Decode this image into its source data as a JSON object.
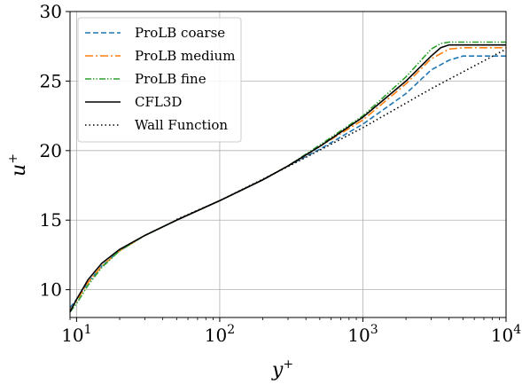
{
  "chart_data": {
    "type": "line",
    "xlabel": "y",
    "xlabel_sup": "+",
    "ylabel": "u",
    "ylabel_sup": "+",
    "xscale": "log",
    "xlim": [
      9,
      10000
    ],
    "ylim": [
      8,
      30
    ],
    "grid": true,
    "legend_position": "top-left",
    "xticks": [
      {
        "value": 10,
        "base": "10",
        "exp": "1"
      },
      {
        "value": 100,
        "base": "10",
        "exp": "2"
      },
      {
        "value": 1000,
        "base": "10",
        "exp": "3"
      },
      {
        "value": 10000,
        "base": "10",
        "exp": "4"
      }
    ],
    "yticks": [
      {
        "value": 10,
        "label": "10"
      },
      {
        "value": 15,
        "label": "15"
      },
      {
        "value": 20,
        "label": "20"
      },
      {
        "value": 25,
        "label": "25"
      },
      {
        "value": 30,
        "label": "30"
      }
    ],
    "series": [
      {
        "name": "ProLB coarse",
        "color": "#1f77b4",
        "dash": "dashed",
        "points": [
          [
            9,
            8.7
          ],
          [
            10,
            9.3
          ],
          [
            12,
            10.5
          ],
          [
            15,
            11.7
          ],
          [
            20,
            12.8
          ],
          [
            30,
            13.9
          ],
          [
            50,
            15.0
          ],
          [
            100,
            16.4
          ],
          [
            200,
            17.9
          ],
          [
            300,
            18.9
          ],
          [
            500,
            20.1
          ],
          [
            1000,
            21.9
          ],
          [
            2000,
            24.1
          ],
          [
            3000,
            25.8
          ],
          [
            4000,
            26.5
          ],
          [
            5000,
            26.8
          ],
          [
            10000,
            26.8
          ]
        ]
      },
      {
        "name": "ProLB medium",
        "color": "#ff7f0e",
        "dash": "dashdot",
        "points": [
          [
            9,
            8.5
          ],
          [
            10,
            9.2
          ],
          [
            12,
            10.5
          ],
          [
            15,
            11.7
          ],
          [
            20,
            12.8
          ],
          [
            30,
            13.9
          ],
          [
            50,
            15.0
          ],
          [
            100,
            16.4
          ],
          [
            200,
            17.9
          ],
          [
            300,
            18.9
          ],
          [
            500,
            20.3
          ],
          [
            1000,
            22.2
          ],
          [
            2000,
            24.8
          ],
          [
            3000,
            26.6
          ],
          [
            4000,
            27.3
          ],
          [
            5000,
            27.4
          ],
          [
            10000,
            27.4
          ]
        ]
      },
      {
        "name": "ProLB fine",
        "color": "#2ca02c",
        "dash": "dashdotdot",
        "points": [
          [
            9,
            8.4
          ],
          [
            10,
            9.0
          ],
          [
            12,
            10.3
          ],
          [
            15,
            11.6
          ],
          [
            20,
            12.8
          ],
          [
            30,
            13.9
          ],
          [
            50,
            15.0
          ],
          [
            100,
            16.4
          ],
          [
            200,
            17.9
          ],
          [
            300,
            18.9
          ],
          [
            500,
            20.4
          ],
          [
            1000,
            22.5
          ],
          [
            2000,
            25.3
          ],
          [
            3000,
            27.3
          ],
          [
            3500,
            27.7
          ],
          [
            4000,
            27.8
          ],
          [
            10000,
            27.8
          ]
        ]
      },
      {
        "name": "CFL3D",
        "color": "#000000",
        "dash": "solid",
        "points": [
          [
            9,
            8.4
          ],
          [
            10,
            9.3
          ],
          [
            12,
            10.7
          ],
          [
            15,
            11.9
          ],
          [
            20,
            12.9
          ],
          [
            30,
            13.9
          ],
          [
            50,
            15.0
          ],
          [
            100,
            16.4
          ],
          [
            200,
            17.9
          ],
          [
            300,
            18.9
          ],
          [
            500,
            20.3
          ],
          [
            1000,
            22.4
          ],
          [
            2000,
            25.0
          ],
          [
            3000,
            26.8
          ],
          [
            3500,
            27.4
          ],
          [
            4000,
            27.6
          ],
          [
            10000,
            27.6
          ]
        ]
      },
      {
        "name": "Wall Function",
        "color": "#000000",
        "dash": "dotted",
        "points": [
          [
            50,
            15.05
          ],
          [
            100,
            16.4
          ],
          [
            300,
            18.85
          ],
          [
            1000,
            21.65
          ],
          [
            3000,
            24.45
          ],
          [
            10000,
            27.3
          ]
        ]
      }
    ]
  }
}
